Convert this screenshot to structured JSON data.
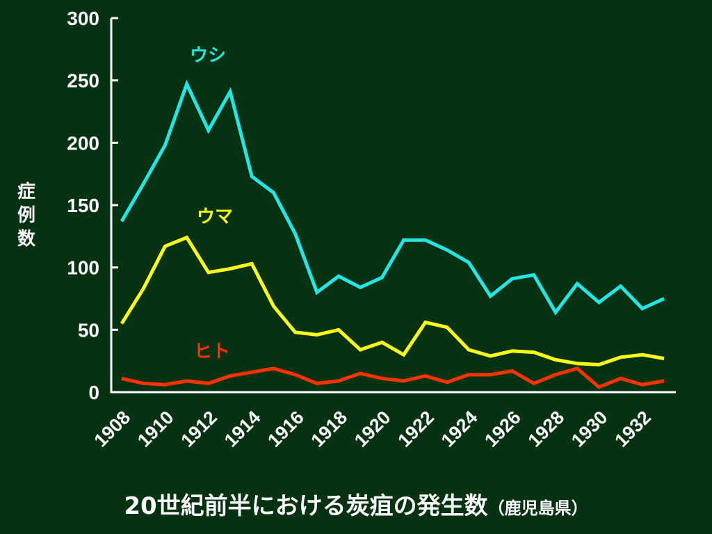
{
  "chart_data": {
    "type": "line",
    "title": "20世紀前半における炭疽の発生数",
    "subtitle": "（鹿児島県）",
    "ylabel": "症例数",
    "xlabel": "",
    "ylim": [
      0,
      300
    ],
    "yticks": [
      0,
      50,
      100,
      150,
      200,
      250,
      300
    ],
    "xticks": [
      1908,
      1910,
      1912,
      1914,
      1916,
      1918,
      1920,
      1922,
      1924,
      1926,
      1928,
      1930,
      1932
    ],
    "x": [
      1908,
      1909,
      1910,
      1911,
      1912,
      1913,
      1914,
      1915,
      1916,
      1917,
      1918,
      1919,
      1920,
      1921,
      1922,
      1923,
      1924,
      1925,
      1926,
      1927,
      1928,
      1929,
      1930,
      1931,
      1932,
      1933
    ],
    "grid": false,
    "series": [
      {
        "name": "ウシ",
        "color": "#22e6e6",
        "values": [
          137,
          167,
          198,
          247,
          210,
          241,
          173,
          160,
          127,
          80,
          93,
          84,
          92,
          122,
          122,
          114,
          104,
          77,
          91,
          94,
          64,
          87,
          72,
          85,
          67,
          75
        ]
      },
      {
        "name": "ウマ",
        "color": "#ffff1a",
        "values": [
          55,
          83,
          117,
          124,
          96,
          99,
          103,
          69,
          48,
          46,
          50,
          34,
          40,
          30,
          56,
          52,
          34,
          29,
          33,
          32,
          26,
          23,
          22,
          28,
          30,
          27
        ]
      },
      {
        "name": "ヒト",
        "color": "#ff3300",
        "values": [
          11,
          7,
          6,
          9,
          7,
          13,
          16,
          19,
          14,
          7,
          9,
          15,
          11,
          9,
          13,
          8,
          14,
          14,
          17,
          7,
          14,
          19,
          4,
          11,
          6,
          9
        ]
      }
    ]
  }
}
